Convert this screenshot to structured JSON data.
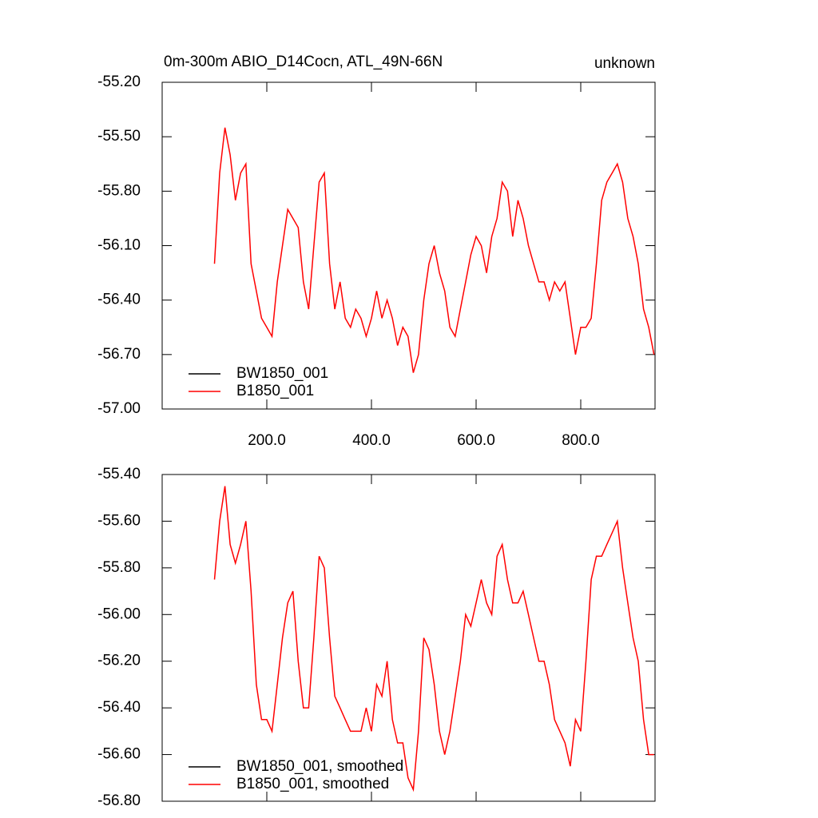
{
  "chart_data": [
    {
      "type": "line",
      "title": "0m-300m ABIO_D14Cocn, ATL_49N-66N",
      "right_title": "unknown",
      "x": [
        100,
        110,
        120,
        130,
        140,
        150,
        160,
        170,
        180,
        190,
        200,
        210,
        220,
        230,
        240,
        250,
        260,
        270,
        280,
        290,
        300,
        310,
        320,
        330,
        340,
        350,
        360,
        370,
        380,
        390,
        400,
        410,
        420,
        430,
        440,
        450,
        460,
        470,
        480,
        490,
        500,
        510,
        520,
        530,
        540,
        550,
        560,
        570,
        580,
        590,
        600,
        610,
        620,
        630,
        640,
        650,
        660,
        670,
        680,
        690,
        700,
        710,
        720,
        730,
        740,
        750,
        760,
        770,
        780,
        790,
        800,
        810,
        820,
        830,
        840,
        850,
        860,
        870,
        880,
        890,
        900,
        910,
        920,
        930,
        940
      ],
      "series": [
        {
          "name": "BW1850_001",
          "color": "#000000",
          "values": [
            null,
            null,
            null,
            null,
            null,
            null,
            null,
            null,
            null,
            null,
            null,
            null,
            null,
            null,
            null,
            null,
            null,
            null,
            null,
            null,
            null,
            null,
            null,
            null,
            null,
            null,
            null,
            null,
            null,
            null,
            null,
            null,
            null,
            null,
            null,
            null,
            null,
            null,
            null,
            null,
            null,
            null,
            null,
            null,
            null,
            null,
            null,
            null,
            null,
            null,
            null,
            null,
            null,
            null,
            null,
            null,
            null,
            null,
            null,
            null,
            null,
            null,
            null,
            null,
            null,
            null,
            null,
            null,
            null,
            null,
            null,
            null,
            null,
            null,
            null,
            null,
            null,
            null,
            null,
            null,
            null,
            null,
            null,
            null,
            null
          ]
        },
        {
          "name": "B1850_001",
          "color": "#ff0000",
          "values": [
            -56.2,
            -55.7,
            -55.45,
            -55.6,
            -55.85,
            -55.7,
            -55.65,
            -56.2,
            -56.35,
            -56.5,
            -56.55,
            -56.6,
            -56.3,
            -56.1,
            -55.9,
            -55.95,
            -56.0,
            -56.3,
            -56.45,
            -56.1,
            -55.75,
            -55.7,
            -56.2,
            -56.45,
            -56.3,
            -56.5,
            -56.55,
            -56.45,
            -56.5,
            -56.6,
            -56.5,
            -56.35,
            -56.5,
            -56.4,
            -56.5,
            -56.65,
            -56.55,
            -56.6,
            -56.8,
            -56.7,
            -56.4,
            -56.2,
            -56.1,
            -56.25,
            -56.35,
            -56.55,
            -56.6,
            -56.45,
            -56.3,
            -56.15,
            -56.05,
            -56.1,
            -56.25,
            -56.05,
            -55.95,
            -55.75,
            -55.8,
            -56.05,
            -55.85,
            -55.95,
            -56.1,
            -56.2,
            -56.3,
            -56.3,
            -56.4,
            -56.3,
            -56.35,
            -56.3,
            -56.5,
            -56.7,
            -56.55,
            -56.55,
            -56.5,
            -56.2,
            -55.85,
            -55.75,
            -55.7,
            -55.65,
            -55.75,
            -55.95,
            -56.05,
            -56.2,
            -56.45,
            -56.55,
            -56.7
          ]
        }
      ],
      "xlim": [
        0,
        942
      ],
      "xticks": [
        {
          "value": 200,
          "label": "200.0"
        },
        {
          "value": 400,
          "label": "400.0"
        },
        {
          "value": 600,
          "label": "600.0"
        },
        {
          "value": 800,
          "label": "800.0"
        }
      ],
      "ylim": [
        -57.0,
        -55.2
      ],
      "yticks": [
        {
          "value": -57.0,
          "label": "-57.00"
        },
        {
          "value": -56.7,
          "label": "-56.70"
        },
        {
          "value": -56.4,
          "label": "-56.40"
        },
        {
          "value": -56.1,
          "label": "-56.10"
        },
        {
          "value": -55.8,
          "label": "-55.80"
        },
        {
          "value": -55.5,
          "label": "-55.50"
        },
        {
          "value": -55.2,
          "label": "-55.20"
        }
      ]
    },
    {
      "type": "line",
      "x": [
        100,
        110,
        120,
        130,
        140,
        150,
        160,
        170,
        180,
        190,
        200,
        210,
        220,
        230,
        240,
        250,
        260,
        270,
        280,
        290,
        300,
        310,
        320,
        330,
        340,
        350,
        360,
        370,
        380,
        390,
        400,
        410,
        420,
        430,
        440,
        450,
        460,
        470,
        480,
        490,
        500,
        510,
        520,
        530,
        540,
        550,
        560,
        570,
        580,
        590,
        600,
        610,
        620,
        630,
        640,
        650,
        660,
        670,
        680,
        690,
        700,
        710,
        720,
        730,
        740,
        750,
        760,
        770,
        780,
        790,
        800,
        810,
        820,
        830,
        840,
        850,
        860,
        870,
        880,
        890,
        900,
        910,
        920,
        930,
        940
      ],
      "series": [
        {
          "name": "BW1850_001, smoothed",
          "color": "#000000",
          "values": [
            null,
            null,
            null,
            null,
            null,
            null,
            null,
            null,
            null,
            null,
            null,
            null,
            null,
            null,
            null,
            null,
            null,
            null,
            null,
            null,
            null,
            null,
            null,
            null,
            null,
            null,
            null,
            null,
            null,
            null,
            null,
            null,
            null,
            null,
            null,
            null,
            null,
            null,
            null,
            null,
            null,
            null,
            null,
            null,
            null,
            null,
            null,
            null,
            null,
            null,
            null,
            null,
            null,
            null,
            null,
            null,
            null,
            null,
            null,
            null,
            null,
            null,
            null,
            null,
            null,
            null,
            null,
            null,
            null,
            null,
            null,
            null,
            null,
            null,
            null,
            null,
            null,
            null,
            null,
            null,
            null,
            null,
            null,
            null,
            null
          ]
        },
        {
          "name": "B1850_001, smoothed",
          "color": "#ff0000",
          "values": [
            -55.85,
            -55.6,
            -55.45,
            -55.7,
            -55.78,
            -55.7,
            -55.6,
            -55.9,
            -56.3,
            -56.45,
            -56.45,
            -56.5,
            -56.3,
            -56.1,
            -55.95,
            -55.9,
            -56.2,
            -56.4,
            -56.4,
            -56.1,
            -55.75,
            -55.8,
            -56.1,
            -56.35,
            -56.4,
            -56.45,
            -56.5,
            -56.5,
            -56.5,
            -56.4,
            -56.5,
            -56.3,
            -56.35,
            -56.2,
            -56.45,
            -56.55,
            -56.55,
            -56.7,
            -56.75,
            -56.5,
            -56.1,
            -56.15,
            -56.3,
            -56.5,
            -56.6,
            -56.5,
            -56.35,
            -56.2,
            -56.0,
            -56.05,
            -55.95,
            -55.85,
            -55.95,
            -56.0,
            -55.75,
            -55.7,
            -55.85,
            -55.95,
            -55.95,
            -55.9,
            -56.0,
            -56.1,
            -56.2,
            -56.2,
            -56.3,
            -56.45,
            -56.5,
            -56.55,
            -56.65,
            -56.45,
            -56.5,
            -56.2,
            -55.85,
            -55.75,
            -55.75,
            -55.7,
            -55.65,
            -55.6,
            -55.8,
            -55.95,
            -56.1,
            -56.2,
            -56.45,
            -56.6,
            -56.6
          ]
        }
      ],
      "xlim": [
        0,
        942
      ],
      "ylim": [
        -56.8,
        -55.4
      ],
      "yticks": [
        {
          "value": -56.8,
          "label": "-56.80"
        },
        {
          "value": -56.6,
          "label": "-56.60"
        },
        {
          "value": -56.4,
          "label": "-56.40"
        },
        {
          "value": -56.2,
          "label": "-56.20"
        },
        {
          "value": -56.0,
          "label": "-56.00"
        },
        {
          "value": -55.8,
          "label": "-55.80"
        },
        {
          "value": -55.6,
          "label": "-55.60"
        },
        {
          "value": -55.4,
          "label": "-55.40"
        }
      ]
    }
  ]
}
